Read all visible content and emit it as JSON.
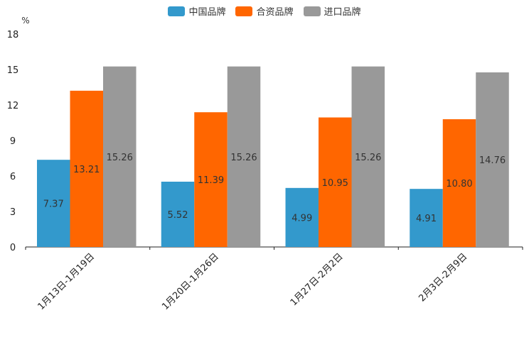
{
  "chart_data": {
    "type": "bar",
    "title": "",
    "ylabel": "%",
    "xlabel": "",
    "ylim": [
      0,
      18
    ],
    "yticks": [
      0,
      3,
      6,
      9,
      12,
      15,
      18
    ],
    "categories": [
      "1月13日-1月19日",
      "1月20日-1月26日",
      "1月27日-2月2日",
      "2月3日-2月9日"
    ],
    "series": [
      {
        "name": "中国品牌",
        "color": "#3399cc",
        "values": [
          7.37,
          5.52,
          4.99,
          4.91
        ],
        "labels": [
          "7.37",
          "5.52",
          "4.99",
          "4.91"
        ]
      },
      {
        "name": "合资品牌",
        "color": "#ff6600",
        "values": [
          13.21,
          11.39,
          10.95,
          10.8
        ],
        "labels": [
          "13.21",
          "11.39",
          "10.95",
          "10.80"
        ]
      },
      {
        "name": "进口品牌",
        "color": "#999999",
        "values": [
          15.26,
          15.26,
          15.26,
          14.76
        ],
        "labels": [
          "15.26",
          "15.26",
          "15.26",
          "14.76"
        ]
      }
    ],
    "legend_position": "top-center",
    "grid": false
  }
}
